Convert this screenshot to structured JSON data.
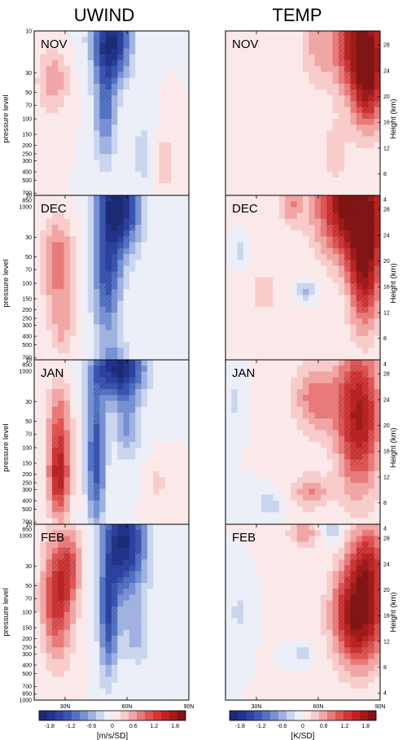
{
  "chart_data": {
    "type": "heatmap",
    "columns": [
      {
        "title": "UWIND",
        "colorbar_label": "[m/s/SD]"
      },
      {
        "title": "TEMP",
        "colorbar_label": "[K/SD]"
      }
    ],
    "months": [
      "NOV",
      "DEC",
      "JAN",
      "FEB"
    ],
    "x_ticks": [
      "30N",
      "60N",
      "90N"
    ],
    "x_range": [
      15,
      90
    ],
    "y_left_label": "pressure level",
    "y_left_ticks": [
      "10",
      "30",
      "50",
      "70",
      "100",
      "150",
      "200",
      "250",
      "300",
      "400",
      "500",
      "700",
      "850",
      "1000"
    ],
    "y_right_label": "Height (km)",
    "y_right_ticks": [
      "28",
      "24",
      "20",
      "16",
      "12",
      "8",
      "4"
    ],
    "colorbar": {
      "range": [
        -2.1,
        2.1
      ],
      "tick_labels": [
        "-1.8",
        "-1.2",
        "-0.6",
        "0",
        "0.6",
        "1.2",
        "1.8"
      ],
      "colors": [
        "#1a2a7a",
        "#21338f",
        "#2b43a6",
        "#3a57b6",
        "#5272c4",
        "#7690d2",
        "#a0b2e0",
        "#cad5ee",
        "#eceef8",
        "#fbe9e9",
        "#f7cccb",
        "#f0a6a5",
        "#e87a7a",
        "#df5454",
        "#d53535",
        "#c22222",
        "#a61919",
        "#861212"
      ]
    }
  }
}
